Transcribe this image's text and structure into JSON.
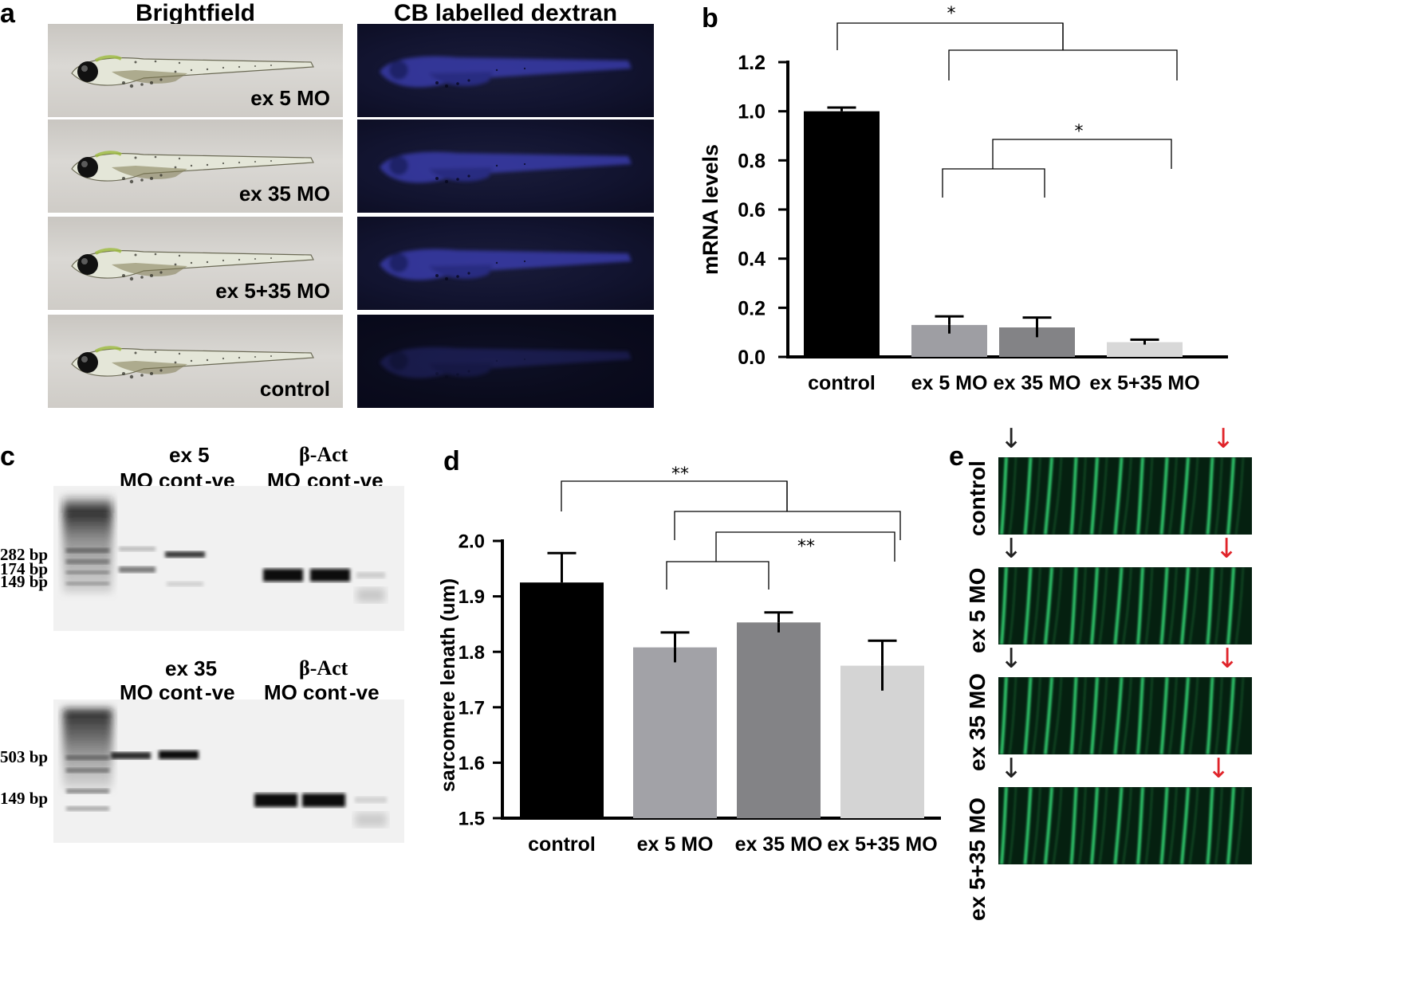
{
  "panel_labels": {
    "a": "a",
    "b": "b",
    "c": "c",
    "d": "d",
    "e": "e"
  },
  "panel_a": {
    "col_titles": [
      "Brightfield",
      "CB labelled dextran"
    ],
    "row_labels": [
      "ex 5 MO",
      "ex 35 MO",
      "ex 5+35 MO",
      "control"
    ]
  },
  "chart_data": [
    {
      "type": "bar",
      "panel": "b",
      "categories": [
        "control",
        "ex 5 MO",
        "ex 35 MO",
        "ex 5+35 MO"
      ],
      "values": [
        1.0,
        0.13,
        0.12,
        0.06
      ],
      "errors": [
        0.015,
        0.035,
        0.04,
        0.01
      ],
      "bar_colors": [
        "#000000",
        "#9e9ea3",
        "#838386",
        "#d8d8d8"
      ],
      "ylabel": "mRNA levels",
      "ylim": [
        0.0,
        1.2
      ],
      "yticks": [
        "0.0",
        "0.2",
        "0.4",
        "0.6",
        "0.8",
        "1.0",
        "1.2"
      ],
      "significance": [
        {
          "label": "*",
          "compare": "control vs ex 5 MO / ex 35 MO / ex 5+35 MO"
        },
        {
          "label": "*",
          "compare": "ex 5 MO / ex 35 MO vs ex 5+35 MO"
        }
      ]
    },
    {
      "type": "bar",
      "panel": "d",
      "categories": [
        "control",
        "ex 5 MO",
        "ex 35 MO",
        "ex 5+35 MO"
      ],
      "values": [
        1.925,
        1.808,
        1.853,
        1.775
      ],
      "errors": [
        0.053,
        0.027,
        0.018,
        0.045
      ],
      "bar_colors": [
        "#000000",
        "#a2a2a7",
        "#838386",
        "#d4d4d4"
      ],
      "ylabel": "sarcomere lenath (um)",
      "ylim": [
        1.5,
        2.0
      ],
      "yticks": [
        "1.5",
        "1.6",
        "1.7",
        "1.8",
        "1.9",
        "2.0"
      ],
      "significance": [
        {
          "label": "**",
          "compare": "control vs ex 5 MO / ex 5+35 MO"
        },
        {
          "label": "**",
          "compare": "ex 5 MO / ex 35 MO vs ex 5+35 MO"
        }
      ]
    }
  ],
  "panel_c": {
    "gel1": {
      "title": "ex 5",
      "lane_labels": [
        "MO",
        "cont",
        "-ve"
      ],
      "ref_title": "β-Act",
      "ref_lane_labels": [
        "MO",
        "cont",
        "-ve"
      ],
      "bp_labels": [
        "282 bp",
        "174 bp",
        "149 bp"
      ]
    },
    "gel2": {
      "title": "ex 35",
      "lane_labels": [
        "MO",
        "cont",
        "-ve"
      ],
      "ref_title": "β-Act",
      "ref_lane_labels": [
        "MO",
        "cont",
        "-ve"
      ],
      "bp_labels": [
        "503 bp",
        "149 bp"
      ]
    }
  },
  "panel_e": {
    "row_labels": [
      "control",
      "ex 5 MO",
      "ex 35 MO",
      "ex 5+35 MO"
    ],
    "arrow_colors": [
      "#222222",
      "#e0242a"
    ]
  }
}
